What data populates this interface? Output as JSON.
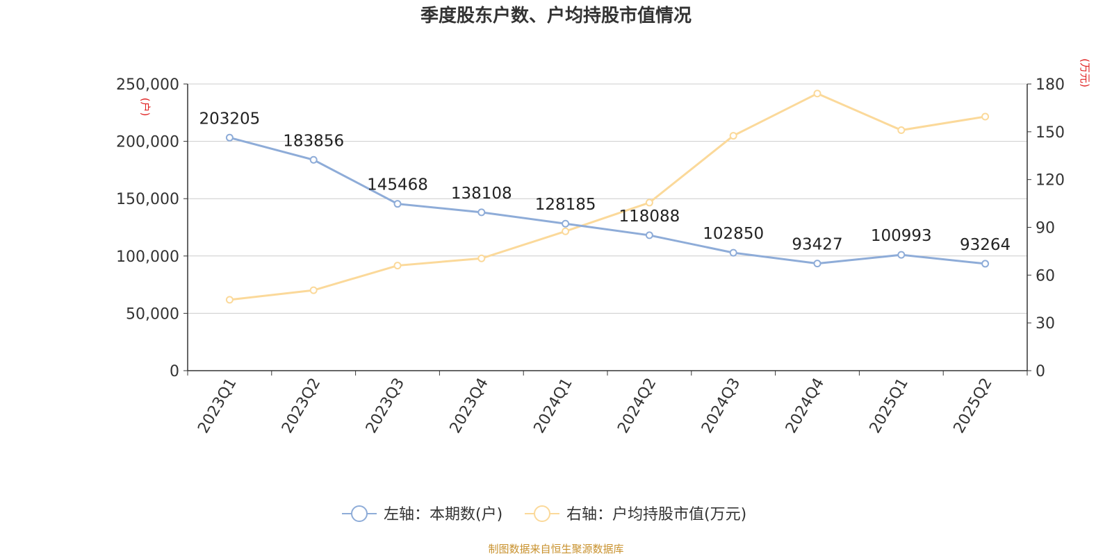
{
  "title": "季度股东户数、户均持股市值情况",
  "footer": "制图数据来自恒生聚源数据库",
  "colors": {
    "left_series": "#8eacd8",
    "right_series": "#fbd99a",
    "unit_label": "#e02020",
    "footer": "#c8912d",
    "axis": "#333333",
    "grid": "#cccccc"
  },
  "chart_data": {
    "type": "line",
    "title": "季度股东户数、户均持股市值情况",
    "categories": [
      "2023Q1",
      "2023Q2",
      "2023Q3",
      "2023Q4",
      "2024Q1",
      "2024Q2",
      "2024Q3",
      "2024Q4",
      "2025Q1",
      "2025Q2"
    ],
    "y_left": {
      "unit": "(户)",
      "range": [
        0,
        250000
      ],
      "ticks": [
        0,
        50000,
        100000,
        150000,
        200000,
        250000
      ],
      "tick_labels": [
        "0",
        "50,000",
        "100,000",
        "150,000",
        "200,000",
        "250,000"
      ]
    },
    "y_right": {
      "unit": "(万元)",
      "range": [
        0,
        180
      ],
      "ticks": [
        0,
        30,
        60,
        90,
        120,
        150,
        180
      ],
      "tick_labels": [
        "0",
        "30",
        "60",
        "90",
        "120",
        "150",
        "180"
      ]
    },
    "grid": true,
    "legend_position": "bottom",
    "series": [
      {
        "name": "左轴：本期数(户)",
        "axis": "left",
        "values": [
          203205,
          183856,
          145468,
          138108,
          128185,
          118088,
          102850,
          93427,
          100993,
          93264
        ],
        "labels": [
          "203205",
          "183856",
          "145468",
          "138108",
          "128185",
          "118088",
          "102850",
          "93427",
          "100993",
          "93264"
        ]
      },
      {
        "name": "右轴：户均持股市值(万元)",
        "axis": "right",
        "values": [
          44.5,
          50.5,
          66,
          70.5,
          87.5,
          105.5,
          147.5,
          174,
          151,
          159.5
        ]
      }
    ]
  }
}
